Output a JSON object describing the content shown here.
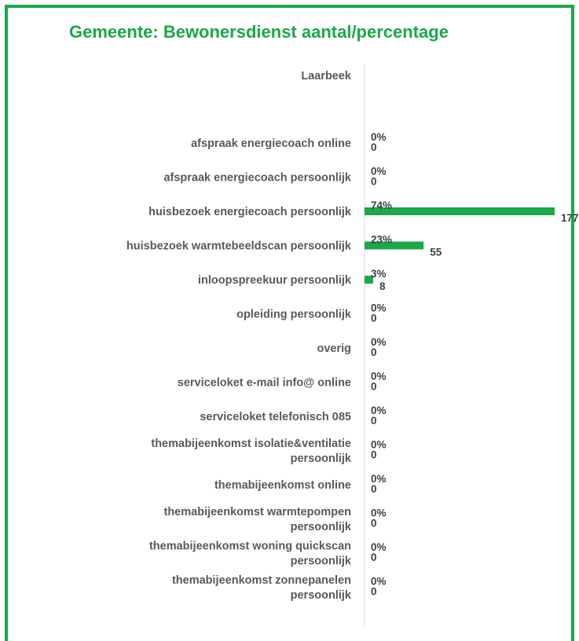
{
  "title": "Gemeente: Bewonersdienst aantal/percentage",
  "chart_data": {
    "type": "bar",
    "orientation": "horizontal",
    "series_label": "Laarbeek",
    "categories": [
      "afspraak energiecoach online",
      "afspraak energiecoach persoonlijk",
      "huisbezoek energiecoach persoonlijk",
      "huisbezoek warmtebeeldscan persoonlijk",
      "inloopspreekuur persoonlijk",
      "opleiding persoonlijk",
      "overig",
      "serviceloket e-mail info@ online",
      "serviceloket telefonisch 085",
      "themabijeenkomst isolatie&ventilatie persoonlijk",
      "themabijeenkomst online",
      "themabijeenkomst warmtepompen persoonlijk",
      "themabijeenkomst woning quickscan persoonlijk",
      "themabijeenkomst zonnepanelen persoonlijk"
    ],
    "series": [
      {
        "values": [
          0,
          0,
          177,
          55,
          8,
          0,
          0,
          0,
          0,
          0,
          0,
          0,
          0,
          0
        ]
      }
    ],
    "percentages": [
      "0%",
      "0%",
      "74%",
      "23%",
      "3%",
      "0%",
      "0%",
      "0%",
      "0%",
      "0%",
      "0%",
      "0%",
      "0%",
      "0%"
    ],
    "xlim": [
      0,
      177
    ],
    "grid": false,
    "bar_color": "#1aa84a"
  }
}
